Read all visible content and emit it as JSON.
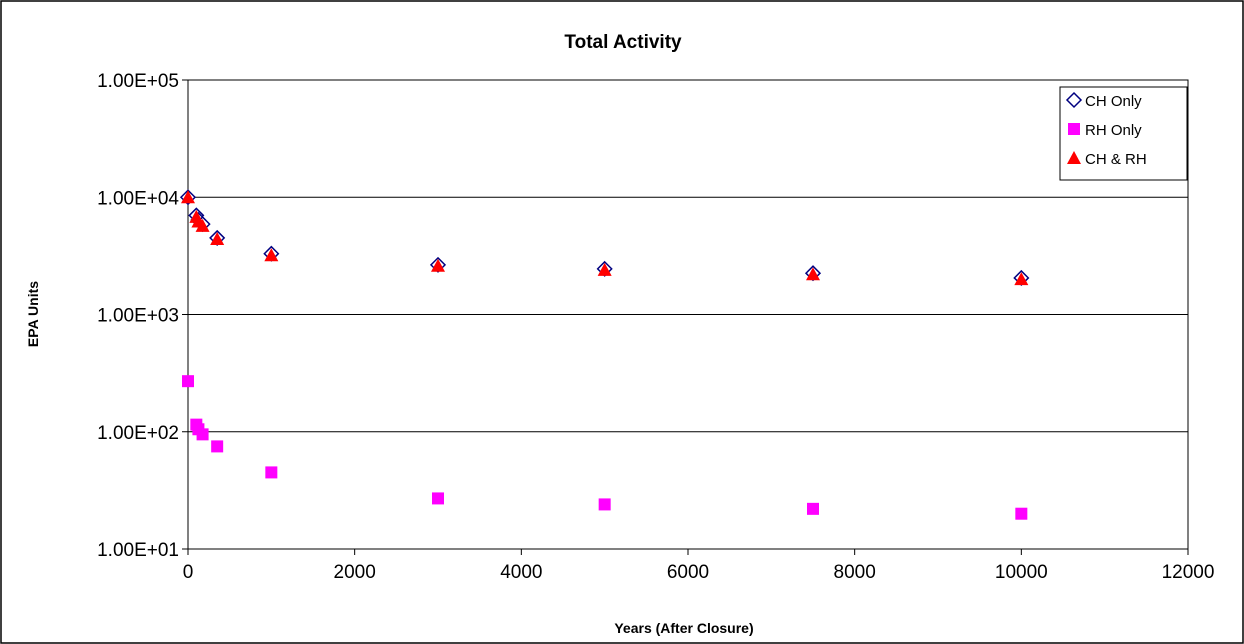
{
  "chart_data": {
    "type": "scatter",
    "title": "Total Activity",
    "xlabel": "Years (After Closure)",
    "ylabel": "EPA Units",
    "xlim": [
      0,
      12000
    ],
    "ylim": [
      10,
      100000
    ],
    "yscale": "log",
    "grid": {
      "y_major": true,
      "x": false
    },
    "legend": "top-right",
    "x_ticks": [
      0,
      2000,
      4000,
      6000,
      8000,
      10000,
      12000
    ],
    "y_ticks": [
      10,
      100,
      1000,
      10000,
      100000
    ],
    "x_tick_labels": [
      "0",
      "2000",
      "4000",
      "6000",
      "8000",
      "10000",
      "12000"
    ],
    "y_tick_labels": [
      "1.00E+01",
      "1.00E+02",
      "1.00E+03",
      "1.00E+04",
      "1.00E+05"
    ],
    "series": [
      {
        "name": "CH Only",
        "marker": "diamond-open",
        "color": "#000080",
        "x": [
          0,
          100,
          125,
          175,
          350,
          1000,
          3000,
          5000,
          7500,
          10000
        ],
        "y": [
          10000,
          7000,
          6400,
          5900,
          4500,
          3300,
          2650,
          2450,
          2250,
          2050
        ]
      },
      {
        "name": "RH Only",
        "marker": "square",
        "color": "#FF00FF",
        "x": [
          0,
          100,
          125,
          175,
          350,
          1000,
          3000,
          5000,
          7500,
          10000
        ],
        "y": [
          270,
          115,
          105,
          95,
          75,
          45,
          27,
          24,
          22,
          20
        ]
      },
      {
        "name": "CH & RH",
        "marker": "triangle",
        "color": "#FF0000",
        "x": [
          0,
          100,
          125,
          175,
          350,
          1000,
          3000,
          5000,
          7500,
          10000
        ],
        "y": [
          10000,
          6800,
          6200,
          5700,
          4400,
          3200,
          2600,
          2400,
          2200,
          2000
        ]
      }
    ]
  }
}
